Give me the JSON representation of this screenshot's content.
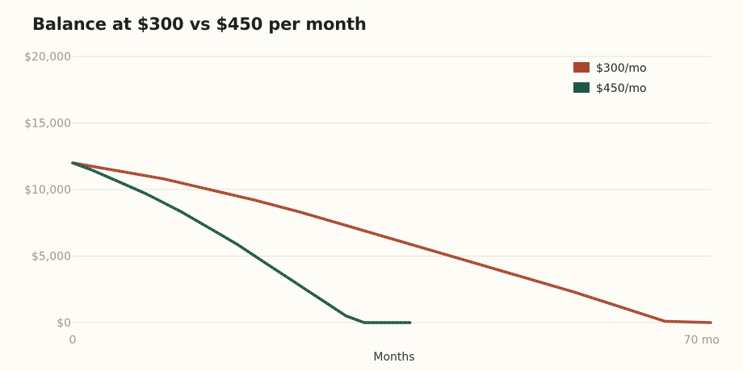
{
  "chart_data": {
    "type": "line",
    "title": "Balance at $300 vs $450 per month",
    "xlabel": "Months",
    "ylabel": "",
    "xlim": [
      0,
      70
    ],
    "ylim": [
      0,
      20000
    ],
    "x_ticks": [
      {
        "value": 0,
        "label": "0"
      },
      {
        "value": 70,
        "label": "70 mo"
      }
    ],
    "y_ticks": [
      {
        "value": 0,
        "label": "$0"
      },
      {
        "value": 5000,
        "label": "$5,000"
      },
      {
        "value": 10000,
        "label": "$10,000"
      },
      {
        "value": 15000,
        "label": "$15,000"
      },
      {
        "value": 20000,
        "label": "$20,000"
      }
    ],
    "grid": true,
    "legend_position": "top-right",
    "series": [
      {
        "name": "$300/mo",
        "color": "#a8462f",
        "x": [
          0,
          5,
          10,
          15,
          20,
          25,
          30,
          35,
          40,
          45,
          50,
          55,
          60,
          65,
          70
        ],
        "y": [
          12000,
          11400,
          10800,
          10000,
          9200,
          8300,
          7300,
          6300,
          5300,
          4300,
          3300,
          2300,
          1200,
          100,
          0
        ]
      },
      {
        "name": "$450/mo",
        "color": "#1e5747",
        "x": [
          0,
          2,
          4,
          6,
          8,
          10,
          12,
          14,
          16,
          18,
          20,
          22,
          24,
          26,
          28,
          30,
          32,
          34,
          36,
          37
        ],
        "y": [
          12000,
          11500,
          10900,
          10300,
          9700,
          9000,
          8300,
          7500,
          6700,
          5900,
          5000,
          4100,
          3200,
          2300,
          1400,
          500,
          0,
          0,
          0,
          0
        ]
      }
    ]
  }
}
